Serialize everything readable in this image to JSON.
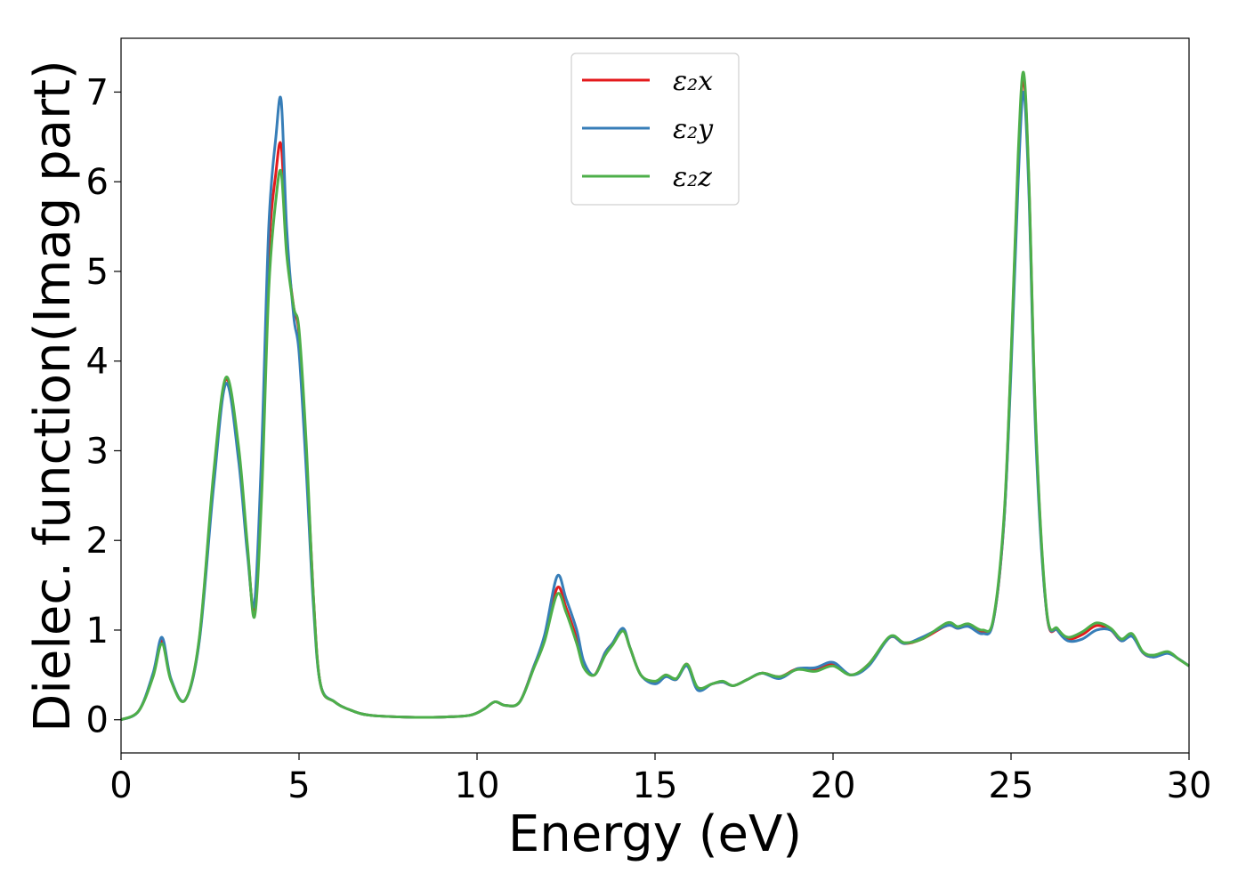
{
  "chart_data": {
    "type": "line",
    "title": "",
    "xlabel": "Energy (eV)",
    "ylabel": "Dielec. function(Imag part)",
    "xlim": [
      0,
      30
    ],
    "ylim": [
      -0.37,
      7.6
    ],
    "x_ticks": [
      0,
      5,
      10,
      15,
      20,
      25,
      30
    ],
    "y_ticks": [
      0,
      1,
      2,
      3,
      4,
      5,
      6,
      7
    ],
    "grid": false,
    "legend_position": "upper center",
    "series": [
      {
        "name": "ε₂x",
        "color": "#e41a1c",
        "x": [
          0,
          0.5,
          0.9,
          1.15,
          1.4,
          1.8,
          2.2,
          2.6,
          2.95,
          3.3,
          3.55,
          3.75,
          3.95,
          4.15,
          4.35,
          4.5,
          4.65,
          4.85,
          5.0,
          5.2,
          5.4,
          5.6,
          6.0,
          6.5,
          7.0,
          8.0,
          9.0,
          9.8,
          10.2,
          10.5,
          10.8,
          11.2,
          11.6,
          11.9,
          12.25,
          12.5,
          12.8,
          13.0,
          13.3,
          13.6,
          13.8,
          14.1,
          14.3,
          14.6,
          15.0,
          15.3,
          15.6,
          15.9,
          16.2,
          16.6,
          16.9,
          17.2,
          17.6,
          18.0,
          18.5,
          19.0,
          19.5,
          20.0,
          20.5,
          21.0,
          21.6,
          22.0,
          22.5,
          23.2,
          23.5,
          23.8,
          24.2,
          24.5,
          24.8,
          25.0,
          25.2,
          25.35,
          25.5,
          25.7,
          26.0,
          26.3,
          26.6,
          27.0,
          27.4,
          27.8,
          28.1,
          28.4,
          28.7,
          29.0,
          29.4,
          29.7,
          30.0
        ],
        "y": [
          0.0,
          0.1,
          0.5,
          0.88,
          0.45,
          0.22,
          0.9,
          2.7,
          3.8,
          3.0,
          1.9,
          1.25,
          2.8,
          5.2,
          6.1,
          6.4,
          5.3,
          4.6,
          4.3,
          3.0,
          1.4,
          0.4,
          0.2,
          0.1,
          0.05,
          0.03,
          0.03,
          0.05,
          0.12,
          0.2,
          0.16,
          0.2,
          0.6,
          0.9,
          1.47,
          1.25,
          0.9,
          0.6,
          0.5,
          0.75,
          0.85,
          1.0,
          0.8,
          0.5,
          0.42,
          0.5,
          0.45,
          0.62,
          0.35,
          0.4,
          0.42,
          0.38,
          0.45,
          0.52,
          0.48,
          0.57,
          0.56,
          0.62,
          0.5,
          0.62,
          0.92,
          0.85,
          0.9,
          1.05,
          1.02,
          1.05,
          0.98,
          1.1,
          2.2,
          4.0,
          6.2,
          7.15,
          6.0,
          3.2,
          1.2,
          1.0,
          0.9,
          0.95,
          1.05,
          1.0,
          0.88,
          0.95,
          0.75,
          0.7,
          0.75,
          0.68,
          0.6
        ]
      },
      {
        "name": "ε₂y",
        "color": "#377eb8",
        "x": [
          0,
          0.5,
          0.9,
          1.15,
          1.4,
          1.8,
          2.2,
          2.6,
          2.95,
          3.3,
          3.55,
          3.75,
          3.95,
          4.15,
          4.35,
          4.5,
          4.65,
          4.85,
          5.0,
          5.2,
          5.4,
          5.6,
          6.0,
          6.5,
          7.0,
          8.0,
          9.0,
          9.8,
          10.2,
          10.5,
          10.8,
          11.2,
          11.6,
          11.9,
          12.25,
          12.5,
          12.8,
          13.0,
          13.3,
          13.6,
          13.8,
          14.1,
          14.3,
          14.6,
          15.0,
          15.3,
          15.6,
          15.9,
          16.2,
          16.6,
          16.9,
          17.2,
          17.6,
          18.0,
          18.5,
          19.0,
          19.5,
          20.0,
          20.5,
          21.0,
          21.6,
          22.0,
          22.5,
          23.2,
          23.5,
          23.8,
          24.2,
          24.5,
          24.8,
          25.0,
          25.2,
          25.35,
          25.5,
          25.7,
          26.0,
          26.3,
          26.6,
          27.0,
          27.4,
          27.8,
          28.1,
          28.4,
          28.7,
          29.0,
          29.4,
          29.7,
          30.0
        ],
        "y": [
          0.0,
          0.1,
          0.52,
          0.92,
          0.46,
          0.22,
          0.88,
          2.6,
          3.75,
          2.9,
          1.85,
          1.3,
          3.0,
          5.5,
          6.5,
          6.9,
          5.5,
          4.5,
          4.1,
          2.8,
          1.3,
          0.4,
          0.2,
          0.1,
          0.05,
          0.03,
          0.03,
          0.05,
          0.12,
          0.2,
          0.16,
          0.2,
          0.6,
          0.95,
          1.6,
          1.35,
          1.0,
          0.65,
          0.5,
          0.75,
          0.85,
          1.02,
          0.8,
          0.5,
          0.4,
          0.48,
          0.45,
          0.6,
          0.33,
          0.4,
          0.42,
          0.38,
          0.45,
          0.52,
          0.46,
          0.57,
          0.58,
          0.64,
          0.5,
          0.6,
          0.92,
          0.85,
          0.92,
          1.05,
          1.02,
          1.04,
          0.96,
          1.1,
          2.2,
          3.9,
          6.0,
          7.0,
          5.9,
          3.1,
          1.2,
          1.0,
          0.88,
          0.9,
          1.0,
          1.0,
          0.88,
          0.93,
          0.75,
          0.7,
          0.74,
          0.68,
          0.6
        ]
      },
      {
        "name": "ε₂z",
        "color": "#4daf4a",
        "x": [
          0,
          0.5,
          0.9,
          1.15,
          1.4,
          1.8,
          2.2,
          2.6,
          2.95,
          3.3,
          3.55,
          3.75,
          3.95,
          4.15,
          4.35,
          4.5,
          4.65,
          4.85,
          5.0,
          5.2,
          5.4,
          5.6,
          6.0,
          6.5,
          7.0,
          8.0,
          9.0,
          9.8,
          10.2,
          10.5,
          10.8,
          11.2,
          11.6,
          11.9,
          12.25,
          12.5,
          12.8,
          13.0,
          13.3,
          13.6,
          13.8,
          14.1,
          14.3,
          14.6,
          15.0,
          15.3,
          15.6,
          15.9,
          16.2,
          16.6,
          16.9,
          17.2,
          17.6,
          18.0,
          18.5,
          19.0,
          19.5,
          20.0,
          20.5,
          21.0,
          21.6,
          22.0,
          22.5,
          23.2,
          23.5,
          23.8,
          24.2,
          24.5,
          24.8,
          25.0,
          25.2,
          25.35,
          25.5,
          25.7,
          26.0,
          26.3,
          26.6,
          27.0,
          27.4,
          27.8,
          28.1,
          28.4,
          28.7,
          29.0,
          29.4,
          29.7,
          30.0
        ],
        "y": [
          0.0,
          0.1,
          0.48,
          0.85,
          0.44,
          0.22,
          0.92,
          2.75,
          3.82,
          3.05,
          1.95,
          1.15,
          2.5,
          4.8,
          5.8,
          6.1,
          5.2,
          4.6,
          4.35,
          3.1,
          1.4,
          0.4,
          0.2,
          0.1,
          0.05,
          0.03,
          0.03,
          0.05,
          0.12,
          0.2,
          0.16,
          0.2,
          0.58,
          0.88,
          1.4,
          1.2,
          0.85,
          0.58,
          0.5,
          0.72,
          0.83,
          0.99,
          0.8,
          0.5,
          0.43,
          0.5,
          0.46,
          0.62,
          0.36,
          0.4,
          0.43,
          0.38,
          0.45,
          0.52,
          0.48,
          0.56,
          0.54,
          0.6,
          0.5,
          0.62,
          0.93,
          0.86,
          0.9,
          1.08,
          1.04,
          1.07,
          1.0,
          1.12,
          2.25,
          4.05,
          6.3,
          7.22,
          6.05,
          3.25,
          1.22,
          1.02,
          0.92,
          0.98,
          1.08,
          1.02,
          0.9,
          0.96,
          0.76,
          0.72,
          0.76,
          0.68,
          0.6
        ]
      }
    ]
  }
}
